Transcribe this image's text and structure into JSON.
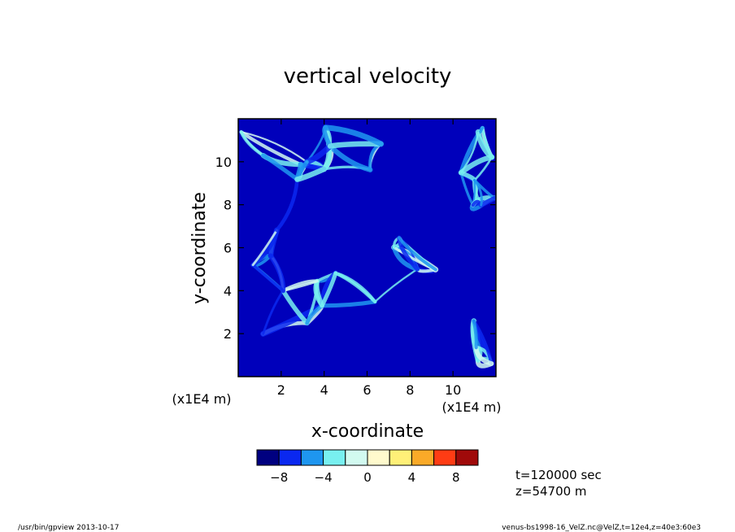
{
  "chart_data": {
    "type": "heatmap",
    "title": "vertical velocity",
    "xlabel": "x-coordinate",
    "ylabel": "y-coordinate",
    "x_scale_label": "(x1E4 m)",
    "y_scale_label": "(x1E4 m)",
    "xlim": [
      0,
      12
    ],
    "ylim": [
      0,
      12
    ],
    "x_ticks": [
      2,
      4,
      6,
      8,
      10
    ],
    "y_ticks": [
      2,
      4,
      6,
      8,
      10
    ],
    "x_tick_labels": [
      "2",
      "4",
      "6",
      "8",
      "10"
    ],
    "y_tick_labels": [
      "2",
      "4",
      "6",
      "8",
      "10"
    ],
    "colorbar": {
      "levels": [
        -10,
        -8,
        -6,
        -4,
        -2,
        0,
        2,
        4,
        6,
        8,
        10
      ],
      "colors": [
        "#000080",
        "#0a28f0",
        "#1e96f0",
        "#78f0f0",
        "#d2faf0",
        "#fffacd",
        "#fff078",
        "#faaa28",
        "#ff3c14",
        "#a00a0a"
      ],
      "tick_values": [
        -8,
        -4,
        0,
        4,
        8
      ],
      "tick_labels": [
        "−8",
        "−4",
        "0",
        "4",
        "8"
      ]
    },
    "annotations": {
      "time": "t=120000 sec",
      "height": "z=54700 m"
    }
  },
  "footer": {
    "left": "/usr/bin/gpview   2013-10-17",
    "right": "venus-bs1998-16_VelZ.nc@VelZ,t=12e4,z=40e3:60e3"
  }
}
